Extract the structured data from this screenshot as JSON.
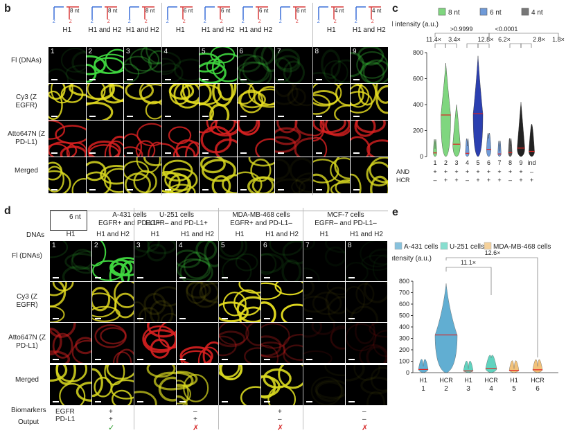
{
  "panel_b": {
    "letter": "b",
    "groups": [
      {
        "nt": "8 nt",
        "cols": [
          "H1Fl",
          "H1Fl and H2Fl",
          "H1Fl and H2Fl"
        ]
      },
      {
        "nt": "6 nt",
        "cols": [
          "H1Fl",
          "H1Fl and H2Fl",
          "H1Fl and H2Fl",
          "H1Fl and H2Fl"
        ]
      },
      {
        "nt": "4 nt",
        "cols": [
          "H1Fl",
          "H1Fl and H2Fl"
        ]
      }
    ],
    "col_labels": [
      "H1",
      "H1 and H2",
      "H1 and H2",
      "H1",
      "H1 and H2",
      "H1 and H2",
      "",
      "H1",
      "H1 and H2"
    ],
    "numbers": [
      "1",
      "2",
      "3",
      "4",
      "5",
      "6",
      "7",
      "8",
      "9"
    ],
    "rows": [
      "Fl (DNAs)",
      "Cy3 (Z EGFR)",
      "Atto647N (Z PD-L1)",
      "Merged"
    ]
  },
  "panel_c": {
    "letter": "c",
    "legend": [
      "8 nt",
      "6 nt",
      "4 nt"
    ],
    "legend_colors": [
      "#7fd67f",
      "#6f9ad8",
      "#777777"
    ],
    "ylabel": "Fl intensity (a.u.)",
    "annotations": [
      "11.4×",
      "3.4×",
      ">0.9999",
      "12.8×",
      "6.2×",
      "<0.0001",
      "2.8×",
      "1.8×"
    ],
    "x_ticks": [
      "1",
      "2",
      "3",
      "4",
      "5",
      "6",
      "7",
      "8",
      "9",
      "ind"
    ],
    "and_row_label": "AND",
    "and_row": [
      "+",
      "+",
      "+",
      "+",
      "+",
      "+",
      "+",
      "+",
      "+",
      "–"
    ],
    "hcr_row_label": "HCR",
    "hcr_row": [
      "–",
      "+",
      "+",
      "–",
      "+",
      "+",
      "+",
      "–",
      "+",
      "+"
    ]
  },
  "chart_data": [
    {
      "type": "violin",
      "panel": "c",
      "ylabel": "Fl intensity (a.u.)",
      "ylim": [
        0,
        800
      ],
      "y_ticks": [
        0,
        200,
        400,
        600,
        800
      ],
      "categories": [
        "1",
        "2",
        "3",
        "4",
        "5",
        "6",
        "7",
        "8",
        "9",
        "ind"
      ],
      "medians": [
        28,
        320,
        95,
        25,
        330,
        55,
        20,
        30,
        65,
        40
      ],
      "maxima": [
        60,
        720,
        400,
        80,
        775,
        140,
        40,
        80,
        420,
        250
      ],
      "series_colors": [
        "#7fd67f",
        "#7fd67f",
        "#7fd67f",
        "#6f9ad8",
        "#2b3fb0",
        "#6f9ad8",
        "#6f9ad8",
        "#555555",
        "#222222",
        "#222222"
      ]
    },
    {
      "type": "violin",
      "panel": "e",
      "ylabel": "Fl intensity (a.u.)",
      "ylim": [
        0,
        800
      ],
      "y_ticks": [
        0,
        100,
        200,
        300,
        400,
        500,
        600,
        700,
        800
      ],
      "categories": [
        "H1 1",
        "HCR 2",
        "H1 3",
        "HCR 4",
        "H1 5",
        "HCR 6"
      ],
      "medians": [
        28,
        330,
        15,
        35,
        20,
        25
      ],
      "maxima": [
        55,
        780,
        35,
        130,
        35,
        55
      ],
      "series": [
        "A-431 cells",
        "A-431 cells",
        "U-251 cells",
        "U-251 cells",
        "MDA-MB-468 cells",
        "MDA-MB-468 cells"
      ],
      "series_colors": [
        "#3a9bc7",
        "#3a9bc7",
        "#39c9b0",
        "#39c9b0",
        "#f0b45a",
        "#f0b45a"
      ]
    }
  ],
  "panel_d": {
    "letter": "d",
    "nt": "6 nt",
    "cells": [
      {
        "name": "A-431 cells",
        "markers": "EGFR+ and PD-L1+"
      },
      {
        "name": "U-251 cells",
        "markers": "EGFR– and PD-L1+"
      },
      {
        "name": "MDA-MB-468 cells",
        "markers": "EGFR+ and PD-L1–"
      },
      {
        "name": "MCF-7 cells",
        "markers": "EGFR– and PD-L1–"
      }
    ],
    "dnas_label": "DNAs",
    "col_labels": [
      "H1",
      "H1 and H2",
      "H1",
      "H1 and H2",
      "H1",
      "H1 and H2",
      "H1",
      "H1 and H2"
    ],
    "numbers": [
      "1",
      "2",
      "3",
      "4",
      "5",
      "6",
      "7",
      "8"
    ],
    "rows": [
      "Fl (DNAs)",
      "Cy3 (Z EGFR)",
      "Atto647N (Z PD-L1)",
      "Merged"
    ],
    "biomarkers_label": "Biomarkers",
    "egfr_label": "EGFR",
    "pdl1_label": "PD-L1",
    "output_label": "Output",
    "egfr": [
      "+",
      "–",
      "+",
      "–"
    ],
    "pdl1": [
      "+",
      "+",
      "–",
      "–"
    ],
    "output": [
      "✓",
      "✗",
      "✗",
      "✗"
    ]
  },
  "panel_e": {
    "letter": "e",
    "legend": [
      "A-431 cells",
      "U-251 cells",
      "MDA-MB-468 cells"
    ],
    "ylabel": "Fl intensity (a.u.)",
    "annotations": [
      "11.1×",
      "12.6×"
    ],
    "x_top": [
      "H1",
      "HCR",
      "H1",
      "HCR",
      "H1",
      "HCR"
    ],
    "x_bottom": [
      "1",
      "2",
      "3",
      "4",
      "5",
      "6"
    ]
  }
}
